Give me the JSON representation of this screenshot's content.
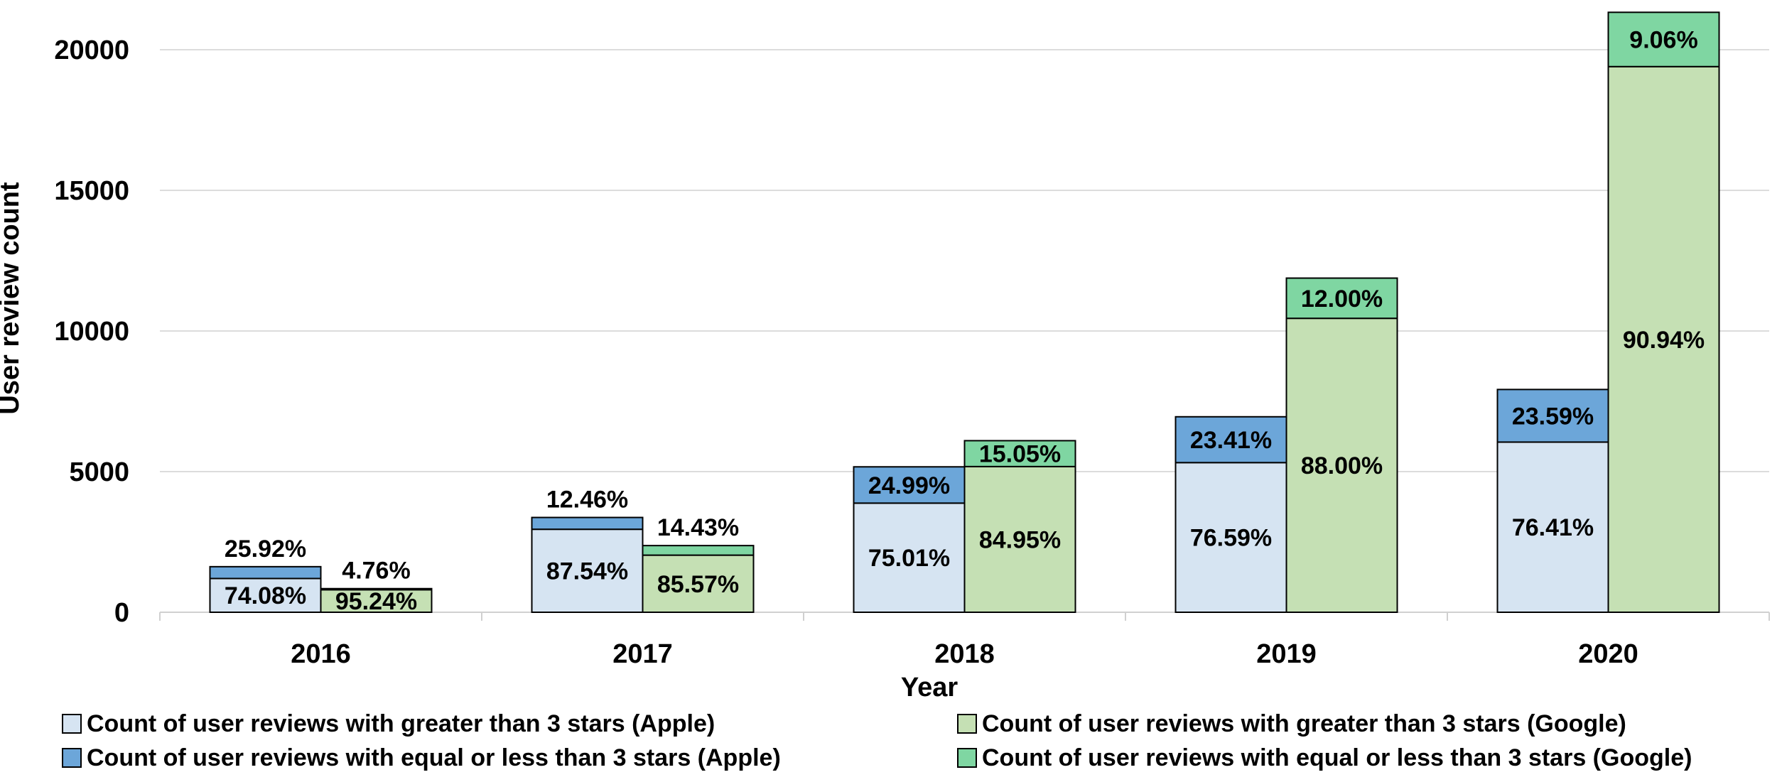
{
  "chart_data": {
    "type": "bar",
    "stacked": true,
    "grouped": true,
    "categories": [
      "2016",
      "2017",
      "2018",
      "2019",
      "2020"
    ],
    "xlabel": "Year",
    "ylabel": "User review count",
    "ylim": [
      0,
      21500
    ],
    "yticks": [
      0,
      5000,
      10000,
      15000,
      20000
    ],
    "grid": true,
    "legend_position": "bottom",
    "groups": [
      {
        "name": "Apple",
        "series": [
          {
            "name": "Count of user reviews with greater than 3 stars (Apple)",
            "color": "#d6e4f2",
            "values": [
              1200,
              2950,
              3880,
              5320,
              6050
            ],
            "labels": [
              "74.08%",
              "87.54%",
              "75.01%",
              "76.59%",
              "76.41%"
            ]
          },
          {
            "name": "Count of user reviews with equal or less than  3 stars (Apple)",
            "color": "#6ca6d9",
            "values": [
              420,
              420,
              1290,
              1630,
              1870
            ],
            "labels": [
              "25.92%",
              "12.46%",
              "24.99%",
              "23.41%",
              "23.59%"
            ]
          }
        ]
      },
      {
        "name": "Google",
        "series": [
          {
            "name": "Count of user reviews with greater than 3 stars (Google)",
            "color": "#c5e0b4",
            "values": [
              800,
              2030,
              5180,
              10450,
              19400
            ],
            "labels": [
              "95.24%",
              "85.57%",
              "84.95%",
              "88.00%",
              "90.94%"
            ]
          },
          {
            "name": "Count of user reviews with equal or less than  3 stars (Google)",
            "color": "#7fd6a2",
            "values": [
              40,
              340,
              920,
              1430,
              1930
            ],
            "labels": [
              "4.76%",
              "14.43%",
              "15.05%",
              "12.00%",
              "9.06%"
            ]
          }
        ]
      }
    ]
  }
}
